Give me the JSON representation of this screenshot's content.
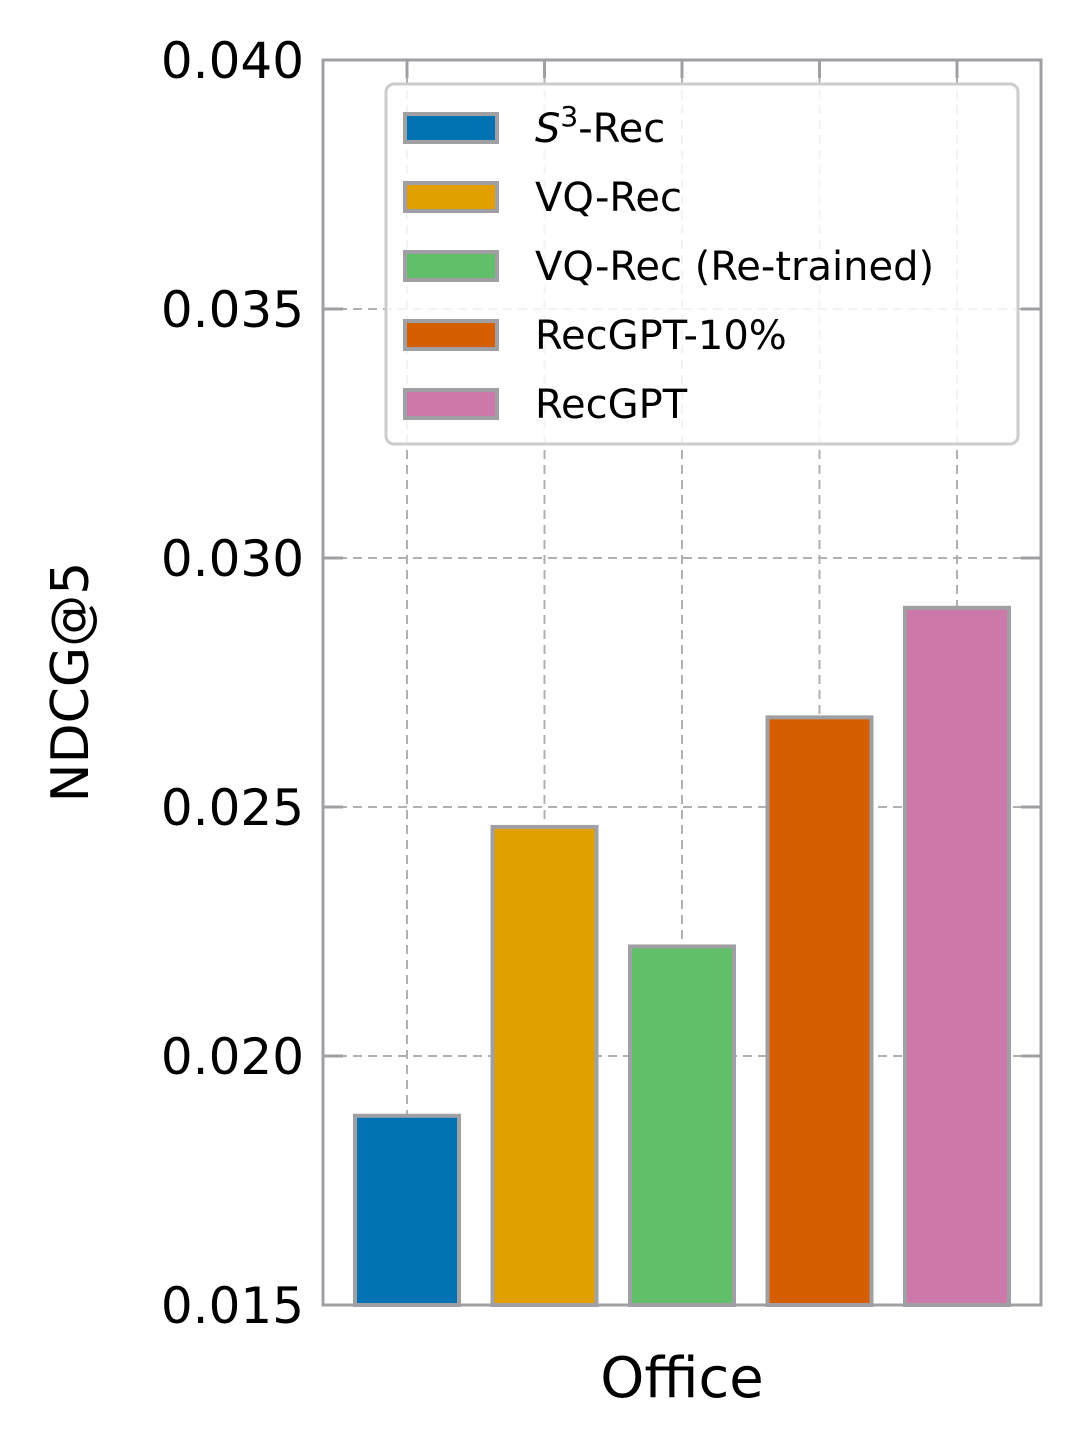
{
  "chart_data": {
    "type": "bar",
    "title": "",
    "xlabel": "Office",
    "ylabel": "NDCG@5",
    "ylim": [
      0.015,
      0.04
    ],
    "yticks": [
      "0.015",
      "0.020",
      "0.025",
      "0.030",
      "0.035",
      "0.040"
    ],
    "grid": true,
    "legend_position": "top-right",
    "series": [
      {
        "name": "S3-Rec",
        "label_main": "S",
        "label_sup": "3",
        "label_rest": "-Rec",
        "value": 0.0188,
        "color": "#0173b2"
      },
      {
        "name": "VQ-Rec",
        "value": 0.0246,
        "color": "#e29f00"
      },
      {
        "name": "VQ-Rec (Re-trained)",
        "value": 0.0222,
        "color": "#62bf69"
      },
      {
        "name": "RecGPT-10%",
        "value": 0.0268,
        "color": "#d55e00"
      },
      {
        "name": "RecGPT",
        "value": 0.029,
        "color": "#cc78a8"
      }
    ],
    "bar_edge_color": "#a0a0a4",
    "axis_color": "#a0a0a4",
    "grid_color": "#b0b0b0"
  }
}
